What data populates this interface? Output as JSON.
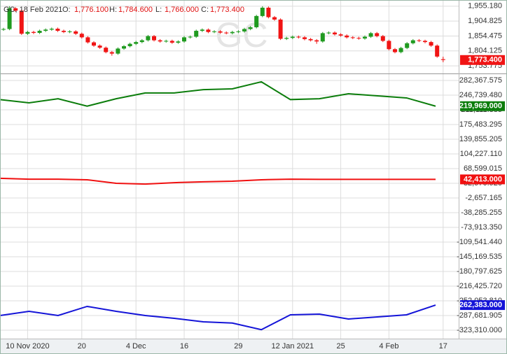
{
  "chart_data": [
    {
      "type": "candlestick",
      "title": "GC, 18 Feb 2021",
      "watermark": "GC",
      "ohlc": [
        {
          "name": "O:",
          "label": "1,776.100"
        },
        {
          "name": "H:",
          "label": "1,784.600"
        },
        {
          "name": "L:",
          "label": "1,766.000"
        },
        {
          "name": "C:",
          "label": "1,773.400"
        }
      ],
      "categories": [
        null,
        null,
        null,
        null,
        "10 Nov 2020",
        null,
        null,
        null,
        null,
        null,
        null,
        null,
        null,
        "20",
        null,
        null,
        null,
        null,
        null,
        null,
        null,
        null,
        "4 Dec",
        null,
        null,
        null,
        null,
        null,
        null,
        null,
        "16",
        null,
        null,
        null,
        null,
        null,
        null,
        null,
        null,
        "29",
        null,
        null,
        null,
        null,
        null,
        null,
        null,
        null,
        "12 Jan 2021",
        null,
        null,
        null,
        null,
        null,
        null,
        null,
        "25",
        null,
        null,
        null,
        null,
        null,
        null,
        null,
        "4 Feb",
        null,
        null,
        null,
        null,
        null,
        null,
        null,
        null,
        "17"
      ],
      "open": [
        1876,
        1878,
        1948,
        1940,
        1862,
        1868,
        1865,
        1872,
        1876,
        1879,
        1872,
        1868,
        1870,
        1862,
        1850,
        1833,
        1822,
        1815,
        1800,
        1795,
        1812,
        1820,
        1828,
        1834,
        1840,
        1854,
        1840,
        1836,
        1838,
        1832,
        1836,
        1850,
        1852,
        1872,
        1876,
        1868,
        1870,
        1866,
        1864,
        1868,
        1870,
        1878,
        1884,
        1922,
        1950,
        1918,
        1910,
        1845,
        1848,
        1852,
        1850,
        1844,
        1840,
        1836,
        1864,
        1866,
        1860,
        1856,
        1850,
        1848,
        1846,
        1852,
        1864,
        1854,
        1838,
        1810,
        1800,
        1814,
        1830,
        1840,
        1838,
        1834,
        1822,
        1776.1
      ],
      "high": [
        1882,
        1955,
        1952,
        1944,
        1872,
        1872,
        1876,
        1880,
        1883,
        1883,
        1876,
        1874,
        1874,
        1866,
        1854,
        1837,
        1826,
        1819,
        1804,
        1816,
        1824,
        1832,
        1838,
        1844,
        1858,
        1858,
        1844,
        1842,
        1842,
        1840,
        1854,
        1856,
        1876,
        1880,
        1880,
        1874,
        1874,
        1870,
        1872,
        1874,
        1882,
        1888,
        1926,
        1955,
        1954,
        1922,
        1914,
        1852,
        1856,
        1856,
        1854,
        1848,
        1844,
        1868,
        1870,
        1870,
        1864,
        1860,
        1854,
        1852,
        1856,
        1868,
        1868,
        1858,
        1842,
        1814,
        1818,
        1834,
        1844,
        1844,
        1842,
        1838,
        1826,
        1784.6
      ],
      "low": [
        1872,
        1874,
        1936,
        1858,
        1858,
        1861,
        1861,
        1868,
        1872,
        1868,
        1864,
        1864,
        1858,
        1846,
        1829,
        1818,
        1811,
        1796,
        1788,
        1791,
        1808,
        1816,
        1824,
        1830,
        1836,
        1836,
        1832,
        1832,
        1828,
        1828,
        1832,
        1846,
        1848,
        1868,
        1864,
        1864,
        1862,
        1860,
        1860,
        1864,
        1866,
        1874,
        1880,
        1918,
        1914,
        1906,
        1841,
        1841,
        1844,
        1846,
        1840,
        1836,
        1828,
        1832,
        1860,
        1856,
        1852,
        1846,
        1844,
        1842,
        1842,
        1848,
        1850,
        1834,
        1806,
        1796,
        1796,
        1810,
        1826,
        1834,
        1830,
        1818,
        1781,
        1766
      ],
      "close": [
        1878,
        1948,
        1940,
        1862,
        1868,
        1865,
        1872,
        1876,
        1879,
        1872,
        1868,
        1870,
        1862,
        1850,
        1833,
        1822,
        1815,
        1800,
        1795,
        1812,
        1820,
        1828,
        1834,
        1840,
        1854,
        1840,
        1836,
        1838,
        1832,
        1836,
        1850,
        1852,
        1872,
        1876,
        1868,
        1870,
        1866,
        1864,
        1868,
        1870,
        1878,
        1884,
        1922,
        1950,
        1918,
        1910,
        1845,
        1848,
        1852,
        1850,
        1844,
        1840,
        1836,
        1864,
        1866,
        1860,
        1856,
        1850,
        1848,
        1846,
        1852,
        1864,
        1854,
        1838,
        1810,
        1800,
        1814,
        1830,
        1840,
        1838,
        1834,
        1822,
        1785,
        1773.4
      ],
      "last_close_label": "1,773.400",
      "up_color": "#1f9a1f",
      "down_color": "#f01414",
      "ylim": [
        1728,
        1976
      ],
      "yticks": [
        {
          "value": 1753.775,
          "label": "1,753.775"
        },
        {
          "value": 1804.125,
          "label": "1,804.125"
        },
        {
          "value": 1854.475,
          "label": "1,854.475"
        },
        {
          "value": 1904.825,
          "label": "1,904.825"
        },
        {
          "value": 1955.18,
          "label": "1,955.180"
        }
      ],
      "grid": true
    },
    {
      "type": "line",
      "categories": [
        null,
        null,
        null,
        null,
        null,
        null,
        null,
        null,
        null,
        null,
        null,
        null,
        null,
        null,
        null,
        null
      ],
      "series": [
        {
          "color": "#0b7d0b",
          "values": [
            236000,
            228000,
            238000,
            220000,
            238000,
            252000,
            252000,
            260000,
            262000,
            279000,
            236000,
            238000,
            250000,
            245000,
            240000,
            219969
          ],
          "last_label": "219,969.000"
        },
        {
          "color": "#f01010",
          "values": [
            45000,
            43000,
            43000,
            41500,
            33000,
            31000,
            34500,
            36500,
            38000,
            41500,
            43000,
            42500,
            42500,
            42500,
            42500,
            42413
          ],
          "last_label": "42,413.000"
        },
        {
          "color": "#1414d8",
          "values": [
            -287700,
            -277500,
            -287700,
            -265600,
            -277500,
            -287700,
            -294500,
            -303000,
            -306000,
            -322000,
            -286000,
            -284300,
            -296200,
            -291100,
            -286000,
            -262383
          ],
          "last_label": "-262,383.000"
        }
      ],
      "ylim": [
        -343700,
        297600
      ],
      "yticks": [
        {
          "value": 282367.575,
          "label": "282,367.575"
        },
        {
          "value": 246739.48,
          "label": "246,739.480"
        },
        {
          "value": 211111.385,
          "label": "211,111.385"
        },
        {
          "value": 175483.295,
          "label": "175,483.295"
        },
        {
          "value": 139855.205,
          "label": "139,855.205"
        },
        {
          "value": 104227.11,
          "label": "104,227.110"
        },
        {
          "value": 68599.015,
          "label": "68,599.015"
        },
        {
          "value": 32970.92,
          "label": "32,970.920"
        },
        {
          "value": -2657.165,
          "label": "-2,657.165"
        },
        {
          "value": -38285.255,
          "label": "-38,285.255"
        },
        {
          "value": -73913.35,
          "label": "-73,913.350"
        },
        {
          "value": -109541.44,
          "label": "-109,541.440"
        },
        {
          "value": -145169.535,
          "label": "-145,169.535"
        },
        {
          "value": -180797.625,
          "label": "-180,797.625"
        },
        {
          "value": -216425.72,
          "label": "-216,425.720"
        },
        {
          "value": -252053.81,
          "label": "-252,053.810"
        },
        {
          "value": -287681.905,
          "label": "-287,681.905"
        },
        {
          "value": -323310,
          "label": "-323,310.000"
        }
      ],
      "grid": true
    }
  ]
}
